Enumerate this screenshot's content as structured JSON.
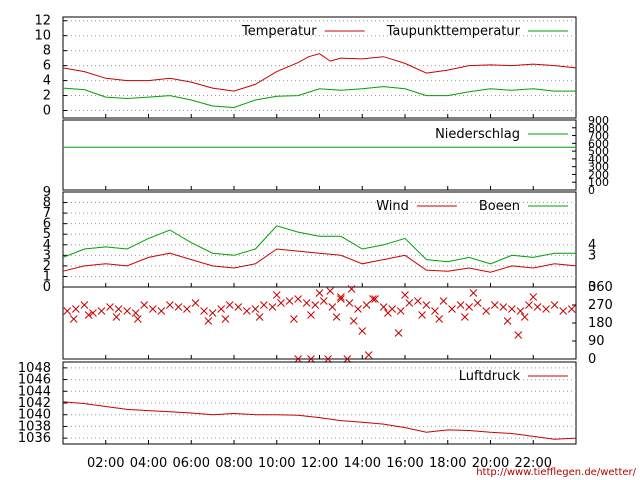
{
  "credit": "http://www.tiefflegen.de/wetter/",
  "colors": {
    "temperature": "#cc0000",
    "dewpoint": "#00a000",
    "rain": "#00a000",
    "wind": "#cc0000",
    "gusts": "#00a000",
    "wind_direction": "#cc0000",
    "pressure": "#cc0000",
    "grid": "#999999"
  },
  "x_axis": {
    "range_hours": [
      0,
      24
    ],
    "tick_hours": [
      2,
      4,
      6,
      8,
      10,
      12,
      14,
      16,
      18,
      20,
      22
    ],
    "tick_labels": [
      "02:00",
      "04:00",
      "06:00",
      "08:00",
      "10:00",
      "12:00",
      "14:00",
      "16:00",
      "18:00",
      "20:00",
      "22:00"
    ]
  },
  "chart_data": [
    {
      "id": "temperature",
      "type": "line",
      "x_unit": "hours",
      "ylim": [
        -1,
        12.5
      ],
      "y_ticks": [
        0,
        2,
        4,
        6,
        8,
        10,
        12
      ],
      "y_tick_labels": [
        "0",
        "2",
        "4",
        "6",
        "8",
        "10",
        "12"
      ],
      "grid": true,
      "legend_position": "top-right",
      "series": [
        {
          "name": "Temperatur",
          "color": "#cc0000",
          "x": [
            0,
            1,
            2,
            3,
            4,
            5,
            6,
            7,
            8,
            9,
            10,
            11,
            11.5,
            12,
            12.5,
            13,
            14,
            15,
            16,
            17,
            18,
            19,
            20,
            21,
            22,
            23,
            24
          ],
          "y": [
            5.7,
            5.2,
            4.3,
            4.0,
            4.0,
            4.3,
            3.8,
            3.0,
            2.6,
            3.5,
            5.2,
            6.4,
            7.2,
            7.6,
            6.6,
            7.0,
            6.9,
            7.2,
            6.3,
            5.0,
            5.4,
            6.0,
            6.1,
            6.0,
            6.2,
            6.0,
            5.7
          ]
        },
        {
          "name": "Taupunkttemperatur",
          "color": "#00a000",
          "x": [
            0,
            1,
            2,
            3,
            4,
            5,
            6,
            7,
            8,
            9,
            10,
            11,
            12,
            13,
            14,
            15,
            16,
            17,
            18,
            19,
            20,
            21,
            22,
            23,
            24
          ],
          "y": [
            3.0,
            2.8,
            1.8,
            1.6,
            1.8,
            2.0,
            1.4,
            0.6,
            0.4,
            1.4,
            1.9,
            2.0,
            2.9,
            2.7,
            2.9,
            3.2,
            2.9,
            2.0,
            2.0,
            2.5,
            2.9,
            2.7,
            2.9,
            2.6,
            2.6
          ]
        }
      ]
    },
    {
      "id": "rain",
      "type": "line",
      "x_unit": "hours",
      "ylim": [
        0,
        900
      ],
      "y_ticks": [
        0,
        100,
        200,
        300,
        400,
        500,
        600,
        700,
        800,
        900
      ],
      "y_tick_labels": [
        "0",
        "100",
        "200",
        "300",
        "400",
        "500",
        "600",
        "700",
        "800",
        "900"
      ],
      "y_axis_side": "right",
      "legend_position": "top-right",
      "series": [
        {
          "name": "Niederschlag",
          "color": "#00a000",
          "x": [
            0,
            24
          ],
          "y": [
            550,
            550
          ]
        }
      ]
    },
    {
      "id": "wind",
      "type": "line",
      "x_unit": "hours",
      "ylim": [
        0,
        9
      ],
      "y_ticks": [
        0,
        1,
        2,
        3,
        4,
        5,
        6,
        7,
        8,
        9
      ],
      "y_tick_labels": [
        "0",
        "1",
        "2",
        "3",
        "4",
        "5",
        "6",
        "7",
        "8",
        "9"
      ],
      "y2_ticks": [
        0,
        3,
        4
      ],
      "y2_tick_labels": [
        "0",
        "3",
        "4"
      ],
      "grid": true,
      "legend_position": "top-right",
      "series": [
        {
          "name": "Wind",
          "color": "#cc0000",
          "x": [
            0,
            1,
            2,
            3,
            4,
            5,
            6,
            7,
            8,
            9,
            10,
            11,
            12,
            13,
            14,
            15,
            16,
            17,
            18,
            19,
            20,
            21,
            22,
            23,
            24
          ],
          "y": [
            1.5,
            2.0,
            2.2,
            2.0,
            2.8,
            3.2,
            2.6,
            2.0,
            1.8,
            2.2,
            3.6,
            3.4,
            3.2,
            3.0,
            2.2,
            2.6,
            3.0,
            1.6,
            1.5,
            1.8,
            1.4,
            2.0,
            1.8,
            2.2,
            2.0
          ]
        },
        {
          "name": "Boeen",
          "color": "#00a000",
          "x": [
            0,
            1,
            2,
            3,
            4,
            5,
            6,
            7,
            8,
            9,
            10,
            11,
            12,
            13,
            14,
            15,
            16,
            17,
            18,
            19,
            20,
            21,
            22,
            23,
            24
          ],
          "y": [
            2.8,
            3.6,
            3.8,
            3.6,
            4.6,
            5.4,
            4.2,
            3.2,
            3.0,
            3.6,
            5.8,
            5.2,
            4.8,
            4.8,
            3.6,
            4.0,
            4.6,
            2.6,
            2.4,
            2.8,
            2.2,
            3.0,
            2.8,
            3.2,
            3.2
          ]
        }
      ]
    },
    {
      "id": "wind_direction",
      "type": "scatter",
      "x_unit": "hours",
      "ylim": [
        0,
        360
      ],
      "y_ticks": [
        0,
        90,
        180,
        270,
        360
      ],
      "y_tick_labels": [
        "0",
        "90",
        "180",
        "270",
        "360"
      ],
      "y_axis_side": "right",
      "series": [
        {
          "name": "",
          "color": "#cc0000",
          "marker": "x",
          "x": [
            0.2,
            0.6,
            1.0,
            1.4,
            1.8,
            2.2,
            2.6,
            3.0,
            3.4,
            3.8,
            4.2,
            4.6,
            5.0,
            5.4,
            5.8,
            6.2,
            6.6,
            7.0,
            7.4,
            7.8,
            8.2,
            8.6,
            9.0,
            9.4,
            9.8,
            10.2,
            10.6,
            11.0,
            11.4,
            11.8,
            12.2,
            12.6,
            13.0,
            13.4,
            13.8,
            14.2,
            14.6,
            15.0,
            15.4,
            15.8,
            16.2,
            16.6,
            17.0,
            17.4,
            17.8,
            18.2,
            18.6,
            19.0,
            19.4,
            19.8,
            20.2,
            20.6,
            21.0,
            21.4,
            21.8,
            22.2,
            22.6,
            23.0,
            23.4,
            23.8,
            0.5,
            1.2,
            2.5,
            3.5,
            6.8,
            7.6,
            9.2,
            10.8,
            11.6,
            12.8,
            13.6,
            15.2,
            16.8,
            17.6,
            18.8,
            20.8,
            21.6,
            10.0,
            12.0,
            12.5,
            13.0,
            13.5,
            14.5,
            16.0,
            19.2,
            22.0,
            11.0,
            11.6,
            12.4,
            13.3,
            14.0,
            14.3,
            15.7,
            21.3
          ],
          "y": [
            240,
            250,
            270,
            230,
            240,
            260,
            250,
            240,
            230,
            270,
            250,
            240,
            270,
            260,
            250,
            280,
            240,
            230,
            250,
            270,
            260,
            240,
            250,
            270,
            260,
            280,
            290,
            300,
            280,
            270,
            290,
            260,
            300,
            280,
            250,
            270,
            300,
            260,
            250,
            240,
            280,
            290,
            270,
            240,
            290,
            250,
            270,
            260,
            280,
            240,
            270,
            260,
            250,
            240,
            270,
            260,
            250,
            270,
            240,
            250,
            200,
            220,
            210,
            200,
            190,
            200,
            210,
            200,
            220,
            210,
            190,
            230,
            220,
            200,
            210,
            190,
            210,
            320,
            330,
            340,
            310,
            350,
            300,
            320,
            330,
            310,
            0,
            0,
            0,
            0,
            140,
            20,
            130,
            120
          ]
        }
      ]
    },
    {
      "id": "pressure",
      "type": "line",
      "x_unit": "hours",
      "ylim": [
        1035,
        1049
      ],
      "y_ticks": [
        1036,
        1038,
        1040,
        1042,
        1044,
        1046,
        1048
      ],
      "y_tick_labels": [
        "1036",
        "1038",
        "1040",
        "1042",
        "1044",
        "1046",
        "1048"
      ],
      "grid": true,
      "legend_position": "top-right",
      "series": [
        {
          "name": "Luftdruck",
          "color": "#cc0000",
          "x": [
            0,
            1,
            2,
            3,
            4,
            5,
            6,
            7,
            8,
            9,
            10,
            11,
            12,
            13,
            14,
            15,
            16,
            17,
            18,
            19,
            20,
            21,
            22,
            23,
            24
          ],
          "y": [
            1042.2,
            1041.9,
            1041.4,
            1040.9,
            1040.7,
            1040.5,
            1040.3,
            1040.0,
            1040.2,
            1040.0,
            1040.0,
            1039.9,
            1039.5,
            1039.0,
            1038.7,
            1038.4,
            1037.8,
            1037.0,
            1037.4,
            1037.3,
            1037.0,
            1036.8,
            1036.3,
            1035.8,
            1036.0
          ]
        }
      ]
    }
  ]
}
